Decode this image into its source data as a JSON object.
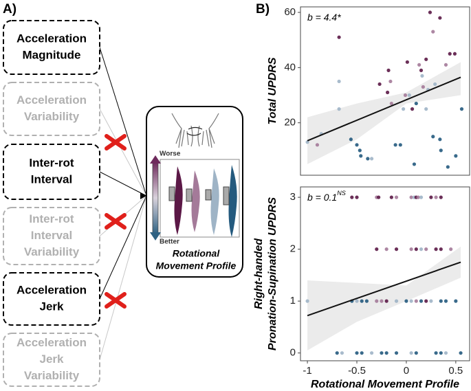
{
  "panel_a": {
    "label": "A)",
    "nodes": [
      {
        "lines": [
          "Acceleration",
          "Magnitude"
        ],
        "active": true
      },
      {
        "lines": [
          "Acceleration",
          "Variability"
        ],
        "active": false
      },
      {
        "lines": [
          "Inter-rot",
          "Interval"
        ],
        "active": true
      },
      {
        "lines": [
          "Inter-rot",
          "Interval",
          "Variability"
        ],
        "active": false
      },
      {
        "lines": [
          "Acceleration",
          "Jerk"
        ],
        "active": true
      },
      {
        "lines": [
          "Acceleration",
          "Jerk",
          "Variability"
        ],
        "active": false
      }
    ],
    "scale_top": "Worse",
    "scale_bottom": "Better",
    "target_lines": [
      "Rotational",
      "Movement Profile"
    ]
  },
  "panel_b_label": "B)",
  "chart_data": [
    {
      "type": "scatter",
      "annotation": "b = 4.4*",
      "ylabel": [
        "Total UPDRS"
      ],
      "xlim": [
        -1.07,
        0.64
      ],
      "ylim": [
        1,
        62
      ],
      "yticks": [
        20,
        40,
        60
      ],
      "points": {
        "x": [
          -1,
          -0.9,
          -0.86,
          -0.68,
          -0.68,
          -0.68,
          -0.56,
          -0.5,
          -0.47,
          -0.46,
          -0.39,
          -0.35,
          -0.27,
          -0.19,
          -0.18,
          -0.16,
          -0.15,
          -0.11,
          -0.06,
          -0.03,
          -0.01,
          0.01,
          0.03,
          0.06,
          0.08,
          0.1,
          0.13,
          0.15,
          0.16,
          0.17,
          0.2,
          0.2,
          0.22,
          0.24,
          0.27,
          0.27,
          0.29,
          0.34,
          0.34,
          0.35,
          0.4,
          0.42,
          0.44,
          0.49,
          0.5,
          0.56
        ],
        "values": [
          13,
          12,
          16,
          51,
          35,
          25,
          14,
          12,
          10,
          8,
          7,
          7,
          34,
          31,
          39,
          35,
          27,
          12,
          12,
          25,
          30,
          42,
          30,
          25,
          5,
          27,
          41,
          39,
          37,
          33,
          43,
          25,
          32,
          60,
          53,
          15,
          34,
          58,
          14,
          10,
          41,
          4,
          45,
          45,
          8,
          25
        ],
        "colors": [
          "#9fb4c6",
          "#a47a99",
          "#9fb4c6",
          "#5b1846",
          "#9fb4c6",
          "#9fb4c6",
          "#245a7e",
          "#245a7e",
          "#245a7e",
          "#245a7e",
          "#245a7e",
          "#9fb4c6",
          "#5b1846",
          "#5b1846",
          "#5b1846",
          "#a47a99",
          "#a47a99",
          "#245a7e",
          "#245a7e",
          "#9fb4c6",
          "#a47a99",
          "#5b1846",
          "#9fb4c6",
          "#5b1846",
          "#245a7e",
          "#245a7e",
          "#a47a99",
          "#5b1846",
          "#9fb4c6",
          "#a47a99",
          "#5b1846",
          "#9fb4c6",
          "#9fb4c6",
          "#5b1846",
          "#a47a99",
          "#245a7e",
          "#9fb4c6",
          "#5b1846",
          "#245a7e",
          "#245a7e",
          "#a47a99",
          "#245a7e",
          "#5b1846",
          "#5b1846",
          "#245a7e",
          "#245a7e"
        ]
      },
      "fit": {
        "x": [
          -1,
          0.55
        ],
        "values": [
          13.5,
          36.5
        ],
        "color": "#111111"
      },
      "band": {
        "x": [
          -1,
          -0.5,
          0,
          0.55
        ],
        "lower": [
          5,
          14,
          27,
          30
        ],
        "upper": [
          22,
          27,
          31,
          42
        ],
        "color": "#ebebeb"
      }
    },
    {
      "type": "scatter",
      "annotation": "b = 0.1",
      "annotation_sup": "NS",
      "ylabel": [
        "Right-handed",
        "Pronation-Supination UPDRS"
      ],
      "xlabel": "Rotational Movement Profile",
      "xlim": [
        -1.07,
        0.64
      ],
      "xticks": [
        -1,
        -0.5,
        0,
        0.5
      ],
      "ylim": [
        -0.15,
        3.2
      ],
      "yticks": [
        0,
        1,
        2,
        3
      ],
      "points": {
        "x": [
          -0.55,
          -0.5,
          -0.3,
          -0.28,
          -0.15,
          -0.1,
          0.05,
          0.08,
          0.1,
          0.12,
          0.15,
          0.25,
          0.3,
          0.35,
          -0.3,
          -0.2,
          -0.1,
          0.05,
          0.1,
          0.15,
          0.2,
          0.3,
          0.35,
          0.45,
          -1,
          -0.55,
          -0.5,
          -0.45,
          -0.4,
          -0.3,
          -0.25,
          -0.2,
          -0.1,
          0,
          0.05,
          0.1,
          0.15,
          0.2,
          0.25,
          0.35,
          0.4,
          0.5,
          -0.7,
          -0.65,
          -0.5,
          -0.45,
          -0.35,
          -0.25,
          -0.2,
          -0.1,
          0.05,
          0.1,
          0.3,
          0.35,
          0.4,
          0.55
        ],
        "values": [
          3,
          3,
          3,
          3,
          3,
          3,
          3,
          3,
          3,
          3,
          3,
          3,
          3,
          3,
          2,
          2,
          2,
          2,
          2,
          2,
          2,
          2,
          2,
          2,
          1,
          1,
          1,
          1,
          1,
          1,
          1,
          1,
          1,
          1,
          1,
          1,
          1,
          1,
          1,
          1,
          1,
          1,
          0,
          0,
          0,
          0,
          0,
          0,
          0,
          0,
          0,
          0,
          0,
          0,
          0,
          0
        ],
        "colors": [
          "#5b1846",
          "#5b1846",
          "#a47a99",
          "#5b1846",
          "#5b1846",
          "#a47a99",
          "#a47a99",
          "#9fb4c6",
          "#5b1846",
          "#a47a99",
          "#9fb4c6",
          "#5b1846",
          "#a47a99",
          "#5b1846",
          "#5b1846",
          "#a47a99",
          "#5b1846",
          "#a47a99",
          "#5b1846",
          "#9fb4c6",
          "#a47a99",
          "#5b1846",
          "#5b1846",
          "#a47a99",
          "#9fb4c6",
          "#245a7e",
          "#9fb4c6",
          "#245a7e",
          "#245a7e",
          "#a47a99",
          "#a47a99",
          "#5b1846",
          "#9fb4c6",
          "#245a7e",
          "#9fb4c6",
          "#a47a99",
          "#245a7e",
          "#5b1846",
          "#9fb4c6",
          "#245a7e",
          "#245a7e",
          "#245a7e",
          "#245a7e",
          "#9fb4c6",
          "#245a7e",
          "#245a7e",
          "#9fb4c6",
          "#245a7e",
          "#245a7e",
          "#245a7e",
          "#9fb4c6",
          "#245a7e",
          "#245a7e",
          "#245a7e",
          "#9fb4c6",
          "#245a7e"
        ]
      },
      "fit": {
        "x": [
          -1,
          0.55
        ],
        "values": [
          0.72,
          1.75
        ],
        "color": "#111111"
      },
      "band": {
        "x": [
          -1,
          -0.5,
          0,
          0.55
        ],
        "lower": [
          0.05,
          0.6,
          1.0,
          1.45
        ],
        "upper": [
          1.4,
          1.35,
          1.3,
          2.05
        ],
        "color": "#ebebeb"
      }
    }
  ]
}
